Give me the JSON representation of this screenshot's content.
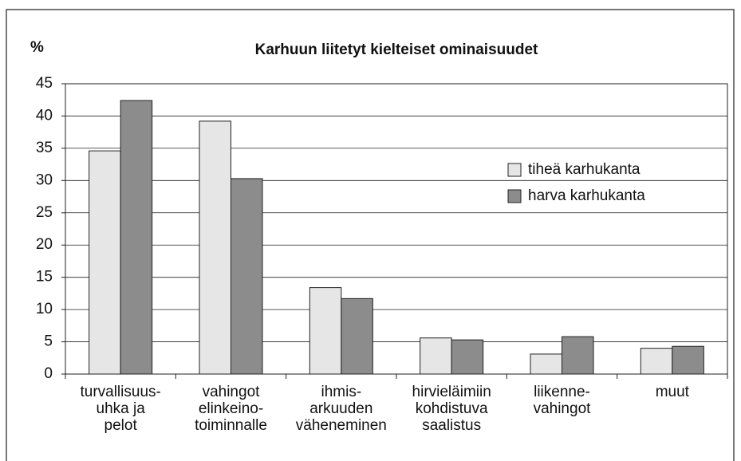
{
  "chart_data": {
    "type": "bar",
    "title": "Karhuun liitetyt kielteiset ominaisuudet",
    "y_label": "%",
    "categories": [
      "turvallisuus-\nuhka ja\npelot",
      "vahingot\nelinkeino-\ntoiminnalle",
      "ihmis-\narkuuden\nväheneminen",
      "hirvieläimiin\nkohdistuva\nsaalistus",
      "liikenne-\nvahingot",
      "muut"
    ],
    "series": [
      {
        "name": "tiheä karhukanta",
        "color": "#e6e6e6",
        "values": [
          34.6,
          39.2,
          13.4,
          5.6,
          3.1,
          4.0
        ]
      },
      {
        "name": "harva karhukanta",
        "color": "#8c8c8c",
        "values": [
          42.4,
          30.3,
          11.7,
          5.3,
          5.8,
          4.3
        ]
      }
    ],
    "ylim": [
      0,
      45
    ],
    "yticks": [
      0,
      5,
      10,
      15,
      20,
      25,
      30,
      35,
      40,
      45
    ],
    "grid": true,
    "legend": "right"
  }
}
